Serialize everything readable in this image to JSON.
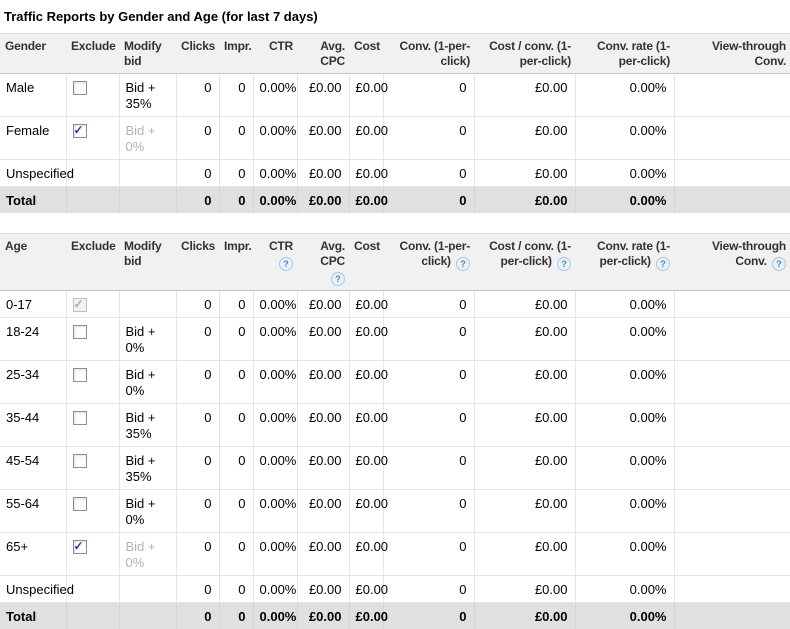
{
  "page_title": "Traffic Reports by Gender and Age (for last 7 days)",
  "glyphs": {
    "check": "✓",
    "help": "?"
  },
  "colors": {
    "header_bg": "#f1f1f1",
    "total_row_bg": "#e0e0e0",
    "row_border": "#e5e5e5",
    "disabled_text": "#b4b4b4",
    "check_blue": "#2a3f8f",
    "help_icon_blue": "#4c83c6"
  },
  "currency_symbol": "£",
  "tables": [
    {
      "name": "gender",
      "columns": [
        {
          "key": "label",
          "header": "Gender",
          "align": "left",
          "help": false
        },
        {
          "key": "exclude",
          "header": "Exclude",
          "align": "left",
          "help": false
        },
        {
          "key": "bid",
          "header": "Modify bid",
          "align": "left",
          "help": false
        },
        {
          "key": "clicks",
          "header": "Clicks",
          "align": "right",
          "help": false
        },
        {
          "key": "impr",
          "header": "Impr.",
          "align": "right",
          "help": false
        },
        {
          "key": "ctr",
          "header": "CTR",
          "align": "right",
          "help": false
        },
        {
          "key": "avg_cpc",
          "header": "Avg. CPC",
          "align": "right",
          "help": false
        },
        {
          "key": "cost",
          "header": "Cost",
          "align": "right",
          "help": false
        },
        {
          "key": "conv",
          "header": "Conv. (1-per-click)",
          "align": "right",
          "help": false
        },
        {
          "key": "cost_per_conv",
          "header": "Cost / conv. (1-per-click)",
          "align": "right",
          "help": false
        },
        {
          "key": "conv_rate",
          "header": "Conv. rate (1-per-click)",
          "align": "right",
          "help": false
        },
        {
          "key": "view_through",
          "header": "View-through Conv.",
          "align": "right",
          "help": false
        }
      ],
      "rows": [
        {
          "label": "Male",
          "checkbox": "unchecked",
          "bid": "Bid + 35%",
          "bid_disabled": false,
          "clicks": "0",
          "impr": "0",
          "ctr": "0.00%",
          "avg_cpc": "£0.00",
          "cost": "£0.00",
          "conv": "0",
          "cost_per_conv": "£0.00",
          "conv_rate": "0.00%",
          "view_through": "",
          "total": false
        },
        {
          "label": "Female",
          "checkbox": "checked",
          "bid": "Bid + 0%",
          "bid_disabled": true,
          "clicks": "0",
          "impr": "0",
          "ctr": "0.00%",
          "avg_cpc": "£0.00",
          "cost": "£0.00",
          "conv": "0",
          "cost_per_conv": "£0.00",
          "conv_rate": "0.00%",
          "view_through": "",
          "total": false
        },
        {
          "label": "Unspecified",
          "checkbox": "none",
          "bid": "",
          "bid_disabled": false,
          "clicks": "0",
          "impr": "0",
          "ctr": "0.00%",
          "avg_cpc": "£0.00",
          "cost": "£0.00",
          "conv": "0",
          "cost_per_conv": "£0.00",
          "conv_rate": "0.00%",
          "view_through": "",
          "total": false
        },
        {
          "label": "Total",
          "checkbox": "none",
          "bid": "",
          "bid_disabled": false,
          "clicks": "0",
          "impr": "0",
          "ctr": "0.00%",
          "avg_cpc": "£0.00",
          "cost": "£0.00",
          "conv": "0",
          "cost_per_conv": "£0.00",
          "conv_rate": "0.00%",
          "view_through": "",
          "total": true
        }
      ]
    },
    {
      "name": "age",
      "columns": [
        {
          "key": "label",
          "header": "Age",
          "align": "left",
          "help": false
        },
        {
          "key": "exclude",
          "header": "Exclude",
          "align": "left",
          "help": false
        },
        {
          "key": "bid",
          "header": "Modify bid",
          "align": "left",
          "help": false
        },
        {
          "key": "clicks",
          "header": "Clicks",
          "align": "right",
          "help": false
        },
        {
          "key": "impr",
          "header": "Impr.",
          "align": "right",
          "help": false
        },
        {
          "key": "ctr",
          "header": "CTR",
          "align": "right",
          "help": true
        },
        {
          "key": "avg_cpc",
          "header": "Avg. CPC",
          "align": "right",
          "help": true
        },
        {
          "key": "cost",
          "header": "Cost",
          "align": "right",
          "help": false
        },
        {
          "key": "conv",
          "header": "Conv. (1-per-click)",
          "align": "right",
          "help": true
        },
        {
          "key": "cost_per_conv",
          "header": "Cost / conv. (1-per-click)",
          "align": "right",
          "help": true
        },
        {
          "key": "conv_rate",
          "header": "Conv. rate (1-per-click)",
          "align": "right",
          "help": true
        },
        {
          "key": "view_through",
          "header": "View-through Conv.",
          "align": "right",
          "help": true
        }
      ],
      "rows": [
        {
          "label": "0-17",
          "checkbox": "checked-disabled",
          "bid": "",
          "bid_disabled": false,
          "clicks": "0",
          "impr": "0",
          "ctr": "0.00%",
          "avg_cpc": "£0.00",
          "cost": "£0.00",
          "conv": "0",
          "cost_per_conv": "£0.00",
          "conv_rate": "0.00%",
          "view_through": "",
          "total": false
        },
        {
          "label": "18-24",
          "checkbox": "unchecked",
          "bid": "Bid + 0%",
          "bid_disabled": false,
          "clicks": "0",
          "impr": "0",
          "ctr": "0.00%",
          "avg_cpc": "£0.00",
          "cost": "£0.00",
          "conv": "0",
          "cost_per_conv": "£0.00",
          "conv_rate": "0.00%",
          "view_through": "",
          "total": false
        },
        {
          "label": "25-34",
          "checkbox": "unchecked",
          "bid": "Bid + 0%",
          "bid_disabled": false,
          "clicks": "0",
          "impr": "0",
          "ctr": "0.00%",
          "avg_cpc": "£0.00",
          "cost": "£0.00",
          "conv": "0",
          "cost_per_conv": "£0.00",
          "conv_rate": "0.00%",
          "view_through": "",
          "total": false
        },
        {
          "label": "35-44",
          "checkbox": "unchecked",
          "bid": "Bid + 35%",
          "bid_disabled": false,
          "clicks": "0",
          "impr": "0",
          "ctr": "0.00%",
          "avg_cpc": "£0.00",
          "cost": "£0.00",
          "conv": "0",
          "cost_per_conv": "£0.00",
          "conv_rate": "0.00%",
          "view_through": "",
          "total": false
        },
        {
          "label": "45-54",
          "checkbox": "unchecked",
          "bid": "Bid + 35%",
          "bid_disabled": false,
          "clicks": "0",
          "impr": "0",
          "ctr": "0.00%",
          "avg_cpc": "£0.00",
          "cost": "£0.00",
          "conv": "0",
          "cost_per_conv": "£0.00",
          "conv_rate": "0.00%",
          "view_through": "",
          "total": false
        },
        {
          "label": "55-64",
          "checkbox": "unchecked",
          "bid": "Bid + 0%",
          "bid_disabled": false,
          "clicks": "0",
          "impr": "0",
          "ctr": "0.00%",
          "avg_cpc": "£0.00",
          "cost": "£0.00",
          "conv": "0",
          "cost_per_conv": "£0.00",
          "conv_rate": "0.00%",
          "view_through": "",
          "total": false
        },
        {
          "label": "65+",
          "checkbox": "checked",
          "bid": "Bid + 0%",
          "bid_disabled": true,
          "clicks": "0",
          "impr": "0",
          "ctr": "0.00%",
          "avg_cpc": "£0.00",
          "cost": "£0.00",
          "conv": "0",
          "cost_per_conv": "£0.00",
          "conv_rate": "0.00%",
          "view_through": "",
          "total": false
        },
        {
          "label": "Unspecified",
          "checkbox": "none",
          "bid": "",
          "bid_disabled": false,
          "clicks": "0",
          "impr": "0",
          "ctr": "0.00%",
          "avg_cpc": "£0.00",
          "cost": "£0.00",
          "conv": "0",
          "cost_per_conv": "£0.00",
          "conv_rate": "0.00%",
          "view_through": "",
          "total": false
        },
        {
          "label": "Total",
          "checkbox": "none",
          "bid": "",
          "bid_disabled": false,
          "clicks": "0",
          "impr": "0",
          "ctr": "0.00%",
          "avg_cpc": "£0.00",
          "cost": "£0.00",
          "conv": "0",
          "cost_per_conv": "£0.00",
          "conv_rate": "0.00%",
          "view_through": "",
          "total": true
        }
      ]
    }
  ]
}
